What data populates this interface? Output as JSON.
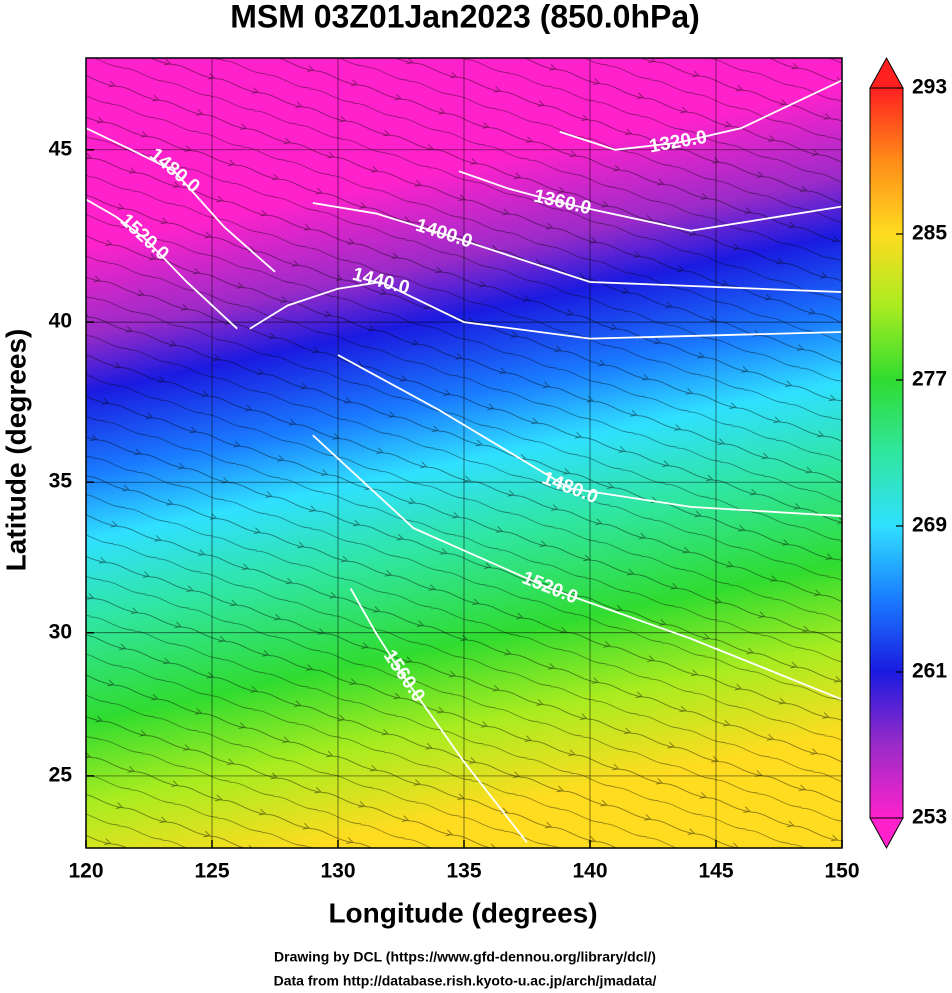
{
  "chart_data": {
    "type": "contour",
    "title": "MSM 03Z01Jan2023 (850.0hPa)",
    "xlabel": "Longitude (degrees)",
    "ylabel": "Latitude  (degrees)",
    "projection": "mercator",
    "xlim": [
      120,
      150
    ],
    "ylim": [
      22.4,
      47.5
    ],
    "xticks": [
      120,
      125,
      130,
      135,
      140,
      145,
      150
    ],
    "yticks": [
      25,
      30,
      35,
      40,
      45
    ],
    "grid": true,
    "contour_color": "#ffffff",
    "contours": [
      {
        "level": 1320,
        "value_label": "1320.0",
        "lon": [
          138.8,
          141,
          143.5,
          146,
          150
        ],
        "lat": [
          45.5,
          45.0,
          45.2,
          45.6,
          46.9
        ]
      },
      {
        "level": 1360,
        "value_label": "1360.0",
        "lon": [
          134.8,
          136.8,
          138.9,
          144,
          150
        ],
        "lat": [
          44.4,
          43.9,
          43.5,
          42.7,
          43.4
        ]
      },
      {
        "level": 1400,
        "value_label": "1400.0",
        "lon": [
          129,
          131.5,
          134.2,
          140,
          150
        ],
        "lat": [
          43.5,
          43.2,
          42.6,
          41.2,
          40.9
        ]
      },
      {
        "level": 1440,
        "value_label": "1440.0",
        "lon": [
          126.5,
          128,
          130,
          131.7,
          135,
          140,
          150
        ],
        "lat": [
          39.8,
          40.5,
          41.0,
          41.2,
          40.0,
          39.5,
          39.7
        ]
      },
      {
        "level": 1480,
        "value_label": "1480.0",
        "lon": [
          120,
          121.8,
          123.5,
          125.5,
          127.5
        ],
        "lat": [
          45.6,
          45.0,
          44.4,
          42.8,
          41.5
        ]
      },
      {
        "level": 1480,
        "value_label": "1480.0",
        "lon": [
          130,
          134,
          139.2,
          144,
          150
        ],
        "lat": [
          39.0,
          37.3,
          34.8,
          34.2,
          33.9
        ]
      },
      {
        "level": 1520,
        "value_label": "1520.0",
        "lon": [
          120,
          121.2,
          122.3,
          124,
          126
        ],
        "lat": [
          43.6,
          43.1,
          42.5,
          41.2,
          39.8
        ]
      },
      {
        "level": 1520,
        "value_label": "1520.0",
        "lon": [
          129,
          133,
          138.4,
          144,
          150
        ],
        "lat": [
          36.5,
          33.5,
          31.5,
          29.8,
          27.7
        ]
      },
      {
        "level": 1560,
        "value_label": "1560.0",
        "lon": [
          130.5,
          131.5,
          132.6,
          135,
          137.5
        ],
        "lat": [
          31.5,
          30.0,
          28.5,
          25.5,
          22.6
        ]
      }
    ],
    "colorbar": {
      "range": [
        253,
        293
      ],
      "ticks": [
        253,
        261,
        269,
        277,
        285,
        293
      ],
      "colors": [
        "#ff22cc",
        "#9a2bc8",
        "#1a1ae0",
        "#1a7cff",
        "#30e0ff",
        "#30e6a0",
        "#30dc30",
        "#a8ec20",
        "#ffdc20",
        "#ff8c18",
        "#ff2020"
      ]
    },
    "footer": [
      "Drawing by DCL (https://www.gfd-dennou.org/library/dcl/)",
      "Data from http://database.rish.kyoto-u.ac.jp/arch/jmadata/"
    ]
  }
}
